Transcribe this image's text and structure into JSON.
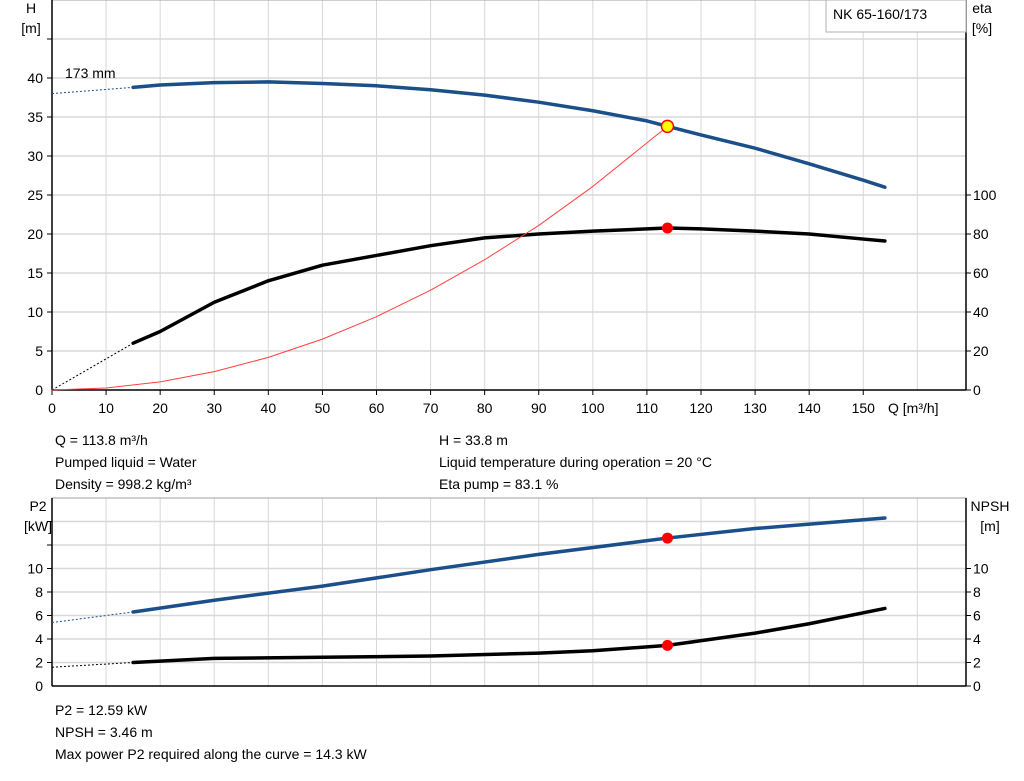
{
  "chart_data": [
    {
      "type": "line",
      "title": "NK 65-160/173",
      "impeller_label": "173 mm",
      "xlabel": "Q [m³/h]",
      "xlim": [
        0,
        169
      ],
      "x_ticks": [
        0,
        10,
        20,
        30,
        40,
        50,
        60,
        70,
        80,
        90,
        100,
        110,
        120,
        130,
        140,
        150
      ],
      "ylabel_left": [
        "H",
        "[m]"
      ],
      "ylim_left": [
        0,
        50
      ],
      "y_ticks_left": [
        0,
        5,
        10,
        15,
        20,
        25,
        30,
        35,
        40
      ],
      "ylabel_right": [
        "eta",
        "[%]"
      ],
      "ylim_right": [
        0,
        200
      ],
      "y_ticks_right": [
        0,
        20,
        40,
        60,
        80,
        100
      ],
      "grid": true,
      "series": [
        {
          "name": "H",
          "axis": "left",
          "color": "#1b4f8a",
          "dashed_x": [
            0,
            15
          ],
          "dashed_y": [
            38,
            38.8
          ],
          "x": [
            15,
            20,
            30,
            40,
            50,
            60,
            70,
            80,
            90,
            100,
            110,
            113.8,
            120,
            130,
            140,
            150,
            154
          ],
          "y": [
            38.8,
            39.1,
            39.4,
            39.5,
            39.3,
            39.0,
            38.5,
            37.8,
            36.9,
            35.8,
            34.5,
            33.8,
            32.7,
            31.0,
            29.0,
            26.9,
            26.0
          ]
        },
        {
          "name": "eta",
          "axis": "right",
          "color": "#000000",
          "dashed_x": [
            0,
            15
          ],
          "dashed_y": [
            0,
            24
          ],
          "x": [
            15,
            20,
            30,
            40,
            50,
            60,
            70,
            80,
            90,
            100,
            110,
            113.8,
            120,
            130,
            140,
            150,
            154
          ],
          "y": [
            24,
            30,
            45,
            56,
            64,
            69,
            74,
            78,
            80,
            81.5,
            82.6,
            83.1,
            82.6,
            81.5,
            80,
            77.4,
            76.4
          ]
        },
        {
          "name": "system",
          "axis": "left",
          "color": "#ff4040",
          "x": [
            0,
            10,
            20,
            30,
            40,
            50,
            60,
            70,
            80,
            90,
            100,
            113.8
          ],
          "y": [
            0,
            0.26,
            1.04,
            2.35,
            4.18,
            6.52,
            9.4,
            12.8,
            16.7,
            21.1,
            26.1,
            33.8
          ]
        }
      ],
      "duty_point": {
        "Q": 113.8,
        "H": 33.8,
        "eta": 83.1
      }
    },
    {
      "type": "line",
      "xlim": [
        0,
        169
      ],
      "ylabel_left": [
        "P2",
        "[kW]"
      ],
      "ylim_left": [
        0,
        16
      ],
      "y_ticks_left": [
        0,
        2,
        4,
        6,
        8,
        10
      ],
      "ylabel_right": [
        "NPSH",
        "[m]"
      ],
      "ylim_right": [
        0,
        16
      ],
      "y_ticks_right": [
        0,
        2,
        4,
        6,
        8,
        10
      ],
      "grid": true,
      "series": [
        {
          "name": "P2",
          "color": "#1b4f8a",
          "dashed_x": [
            0,
            15
          ],
          "dashed_y": [
            5.4,
            6.3
          ],
          "x": [
            15,
            30,
            50,
            70,
            90,
            113.8,
            130,
            154
          ],
          "y": [
            6.3,
            7.3,
            8.5,
            9.9,
            11.2,
            12.59,
            13.4,
            14.3
          ]
        },
        {
          "name": "NPSH",
          "color": "#000000",
          "dashed_x": [
            0,
            15
          ],
          "dashed_y": [
            1.6,
            2.0
          ],
          "x": [
            15,
            30,
            50,
            70,
            90,
            100,
            113.8,
            130,
            140,
            154
          ],
          "y": [
            2.0,
            2.35,
            2.45,
            2.55,
            2.8,
            3.0,
            3.46,
            4.5,
            5.3,
            6.6
          ]
        }
      ],
      "duty_point": {
        "Q": 113.8,
        "P2": 12.59,
        "NPSH": 3.46
      }
    }
  ],
  "info_top": {
    "left": [
      "Q = 113.8 m³/h",
      "Pumped liquid = Water",
      "Density = 998.2 kg/m³"
    ],
    "right": [
      "H = 33.8 m",
      "Liquid temperature during operation = 20 °C",
      "Eta pump = 83.1 %"
    ]
  },
  "info_bottom": [
    "P2 = 12.59 kW",
    "NPSH = 3.46 m",
    "Max power P2 required along the curve = 14.3 kW"
  ]
}
